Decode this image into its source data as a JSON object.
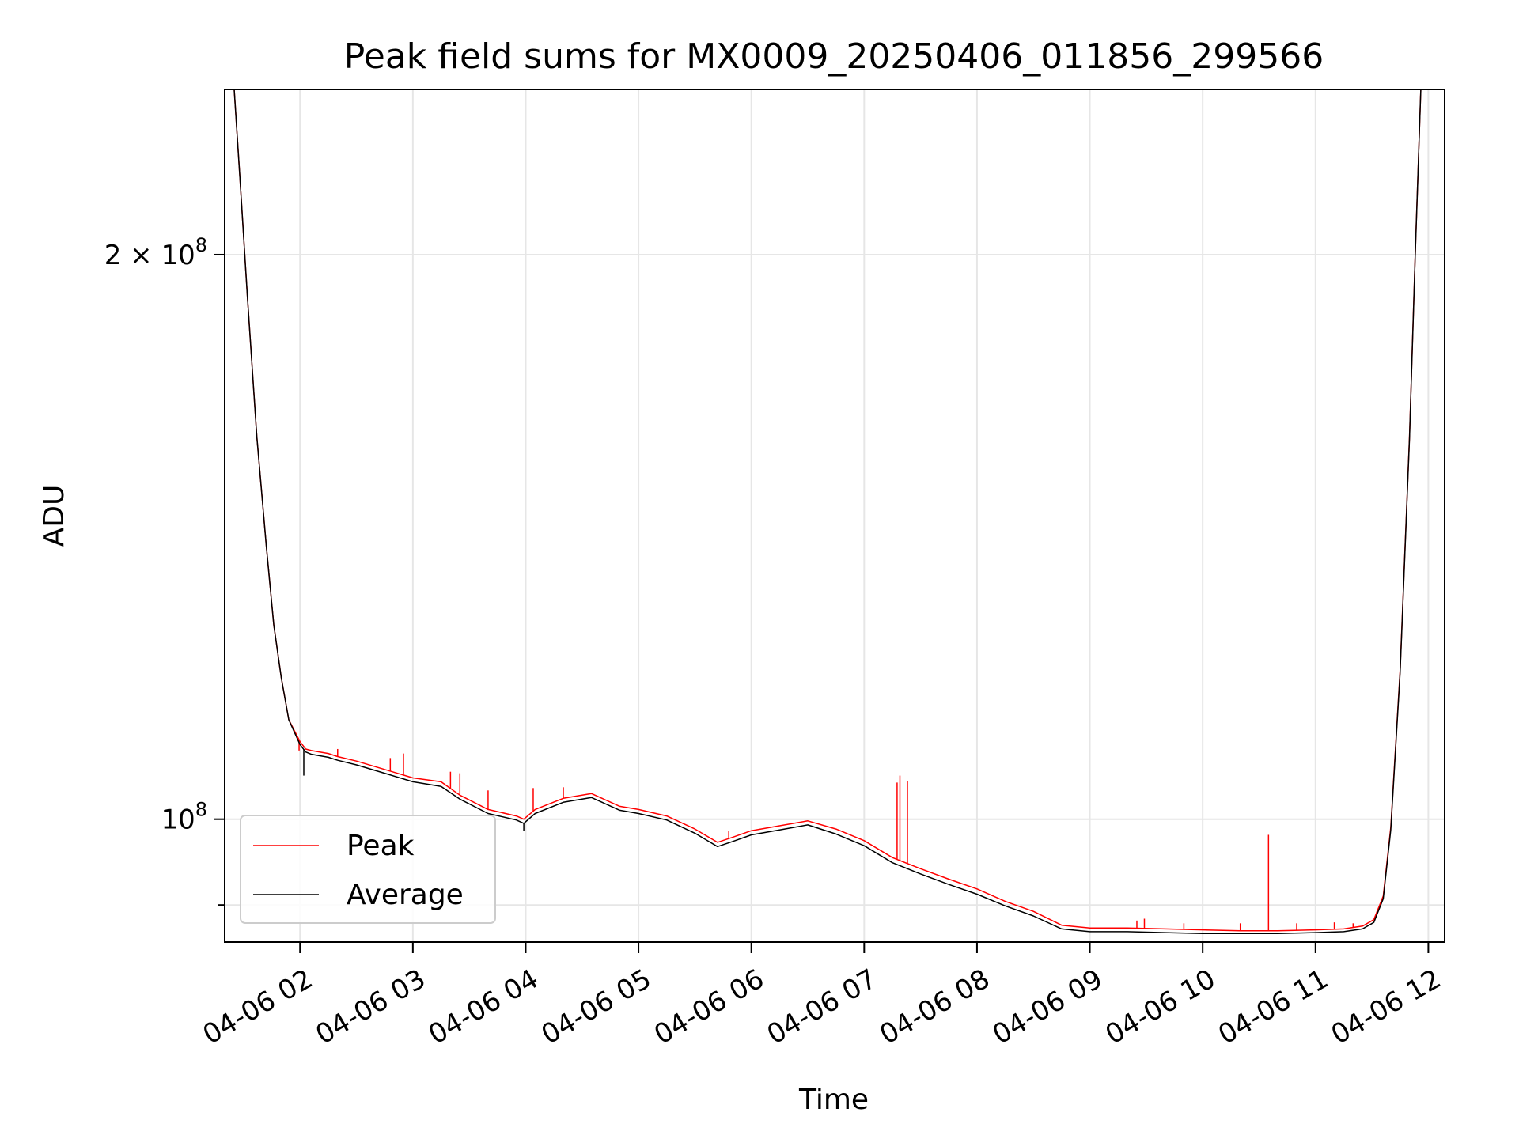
{
  "chart_data": {
    "type": "line",
    "title": "Peak field sums for MX0009_20250406_011856_299566",
    "xlabel": "Time",
    "ylabel": "ADU",
    "yscale": "log",
    "ylim": [
      86000000,
      245000000
    ],
    "xlim": [
      "2025-04-06 01:19:56",
      "2025-04-06 12:08:40"
    ],
    "grid": true,
    "legend_position": "lower left",
    "x_ticks": [
      "04-06 02",
      "04-06 03",
      "04-06 04",
      "04-06 05",
      "04-06 06",
      "04-06 07",
      "04-06 08",
      "04-06 09",
      "04-06 10",
      "04-06 11",
      "04-06 12"
    ],
    "y_major_ticks": [
      {
        "value": 100000000,
        "base": "10",
        "exp": "8",
        "coef": ""
      },
      {
        "value": 200000000,
        "base": "10",
        "exp": "8",
        "coef": "2 × "
      }
    ],
    "y_minor_ticks": [
      90000000
    ],
    "x": [
      "2025-04-06 01:25:00",
      "2025-04-06 01:28:00",
      "2025-04-06 01:32:00",
      "2025-04-06 01:37:00",
      "2025-04-06 01:42:00",
      "2025-04-06 01:46:00",
      "2025-04-06 01:50:00",
      "2025-04-06 01:54:00",
      "2025-04-06 02:00:00",
      "2025-04-06 02:03:00",
      "2025-04-06 02:06:00",
      "2025-04-06 02:15:00",
      "2025-04-06 02:20:00",
      "2025-04-06 02:30:00",
      "2025-04-06 02:45:00",
      "2025-04-06 03:00:00",
      "2025-04-06 03:15:00",
      "2025-04-06 03:25:00",
      "2025-04-06 03:40:00",
      "2025-04-06 03:55:00",
      "2025-04-06 03:59:00",
      "2025-04-06 04:05:00",
      "2025-04-06 04:20:00",
      "2025-04-06 04:35:00",
      "2025-04-06 04:50:00",
      "2025-04-06 05:00:00",
      "2025-04-06 05:15:00",
      "2025-04-06 05:30:00",
      "2025-04-06 05:42:00",
      "2025-04-06 05:50:00",
      "2025-04-06 06:00:00",
      "2025-04-06 06:15:00",
      "2025-04-06 06:30:00",
      "2025-04-06 06:45:00",
      "2025-04-06 07:00:00",
      "2025-04-06 07:15:00",
      "2025-04-06 07:30:00",
      "2025-04-06 07:45:00",
      "2025-04-06 08:00:00",
      "2025-04-06 08:15:00",
      "2025-04-06 08:30:00",
      "2025-04-06 08:45:00",
      "2025-04-06 09:00:00",
      "2025-04-06 09:20:00",
      "2025-04-06 09:40:00",
      "2025-04-06 10:00:00",
      "2025-04-06 10:20:00",
      "2025-04-06 10:40:00",
      "2025-04-06 11:00:00",
      "2025-04-06 11:15:00",
      "2025-04-06 11:25:00",
      "2025-04-06 11:31:00",
      "2025-04-06 11:36:00",
      "2025-04-06 11:40:00",
      "2025-04-06 11:45:00",
      "2025-04-06 11:50:00",
      "2025-04-06 11:53:00",
      "2025-04-06 11:56:00"
    ],
    "series": [
      {
        "name": "Peak",
        "color": "#ff0000",
        "values": [
          245000000,
          220000000,
          190000000,
          160000000,
          140000000,
          127000000,
          119000000,
          113000000,
          110000000,
          109000000,
          108800000,
          108400000,
          108000000,
          107400000,
          106300000,
          105200000,
          104700000,
          103000000,
          101200000,
          100400000,
          100000000,
          101200000,
          102600000,
          103200000,
          101600000,
          101200000,
          100400000,
          98800000,
          97200000,
          97800000,
          98600000,
          99200000,
          99800000,
          98800000,
          97400000,
          95400000,
          94100000,
          92900000,
          91800000,
          90400000,
          89300000,
          87800000,
          87500000,
          87500000,
          87400000,
          87300000,
          87200000,
          87200000,
          87300000,
          87400000,
          87700000,
          88400000,
          91000000,
          99000000,
          120000000,
          160000000,
          200000000,
          245000000
        ],
        "spikes": [
          {
            "x": "2025-04-06 01:59:30",
            "value": 108800000
          },
          {
            "x": "2025-04-06 02:20:00",
            "value": 109000000
          },
          {
            "x": "2025-04-06 02:48:00",
            "value": 107800000
          },
          {
            "x": "2025-04-06 02:55:00",
            "value": 108400000
          },
          {
            "x": "2025-04-06 03:20:00",
            "value": 106000000
          },
          {
            "x": "2025-04-06 03:25:00",
            "value": 105800000
          },
          {
            "x": "2025-04-06 03:40:00",
            "value": 103600000
          },
          {
            "x": "2025-04-06 04:04:00",
            "value": 103900000
          },
          {
            "x": "2025-04-06 04:20:00",
            "value": 104000000
          },
          {
            "x": "2025-04-06 05:48:00",
            "value": 98600000
          },
          {
            "x": "2025-04-06 07:17:30",
            "value": 104600000
          },
          {
            "x": "2025-04-06 07:19:00",
            "value": 105500000
          },
          {
            "x": "2025-04-06 07:23:00",
            "value": 104800000
          },
          {
            "x": "2025-04-06 09:25:00",
            "value": 88300000
          },
          {
            "x": "2025-04-06 09:29:00",
            "value": 88500000
          },
          {
            "x": "2025-04-06 09:50:00",
            "value": 88000000
          },
          {
            "x": "2025-04-06 10:20:00",
            "value": 88000000
          },
          {
            "x": "2025-04-06 10:35:00",
            "value": 98100000
          },
          {
            "x": "2025-04-06 10:50:00",
            "value": 88000000
          },
          {
            "x": "2025-04-06 11:10:00",
            "value": 88100000
          },
          {
            "x": "2025-04-06 11:20:00",
            "value": 88000000
          }
        ]
      },
      {
        "name": "Average",
        "color": "#000000",
        "values": [
          245000000,
          220000000,
          190000000,
          160000000,
          140000000,
          127000000,
          119000000,
          113000000,
          109600000,
          108600000,
          108300000,
          107900000,
          107500000,
          106900000,
          105800000,
          104700000,
          104100000,
          102500000,
          100700000,
          99900000,
          99500000,
          100700000,
          102100000,
          102700000,
          101100000,
          100700000,
          99900000,
          98300000,
          96700000,
          97300000,
          98100000,
          98700000,
          99300000,
          98200000,
          96800000,
          94800000,
          93500000,
          92300000,
          91200000,
          89900000,
          88800000,
          87400000,
          87100000,
          87100000,
          87000000,
          86900000,
          86900000,
          86900000,
          87000000,
          87100000,
          87400000,
          88100000,
          90700000,
          98700000,
          119700000,
          159700000,
          199700000,
          245000000
        ],
        "dips": [
          {
            "x": "2025-04-06 02:02:00",
            "value": 105500000
          },
          {
            "x": "2025-04-06 03:59:00",
            "value": 98600000
          }
        ]
      }
    ]
  }
}
